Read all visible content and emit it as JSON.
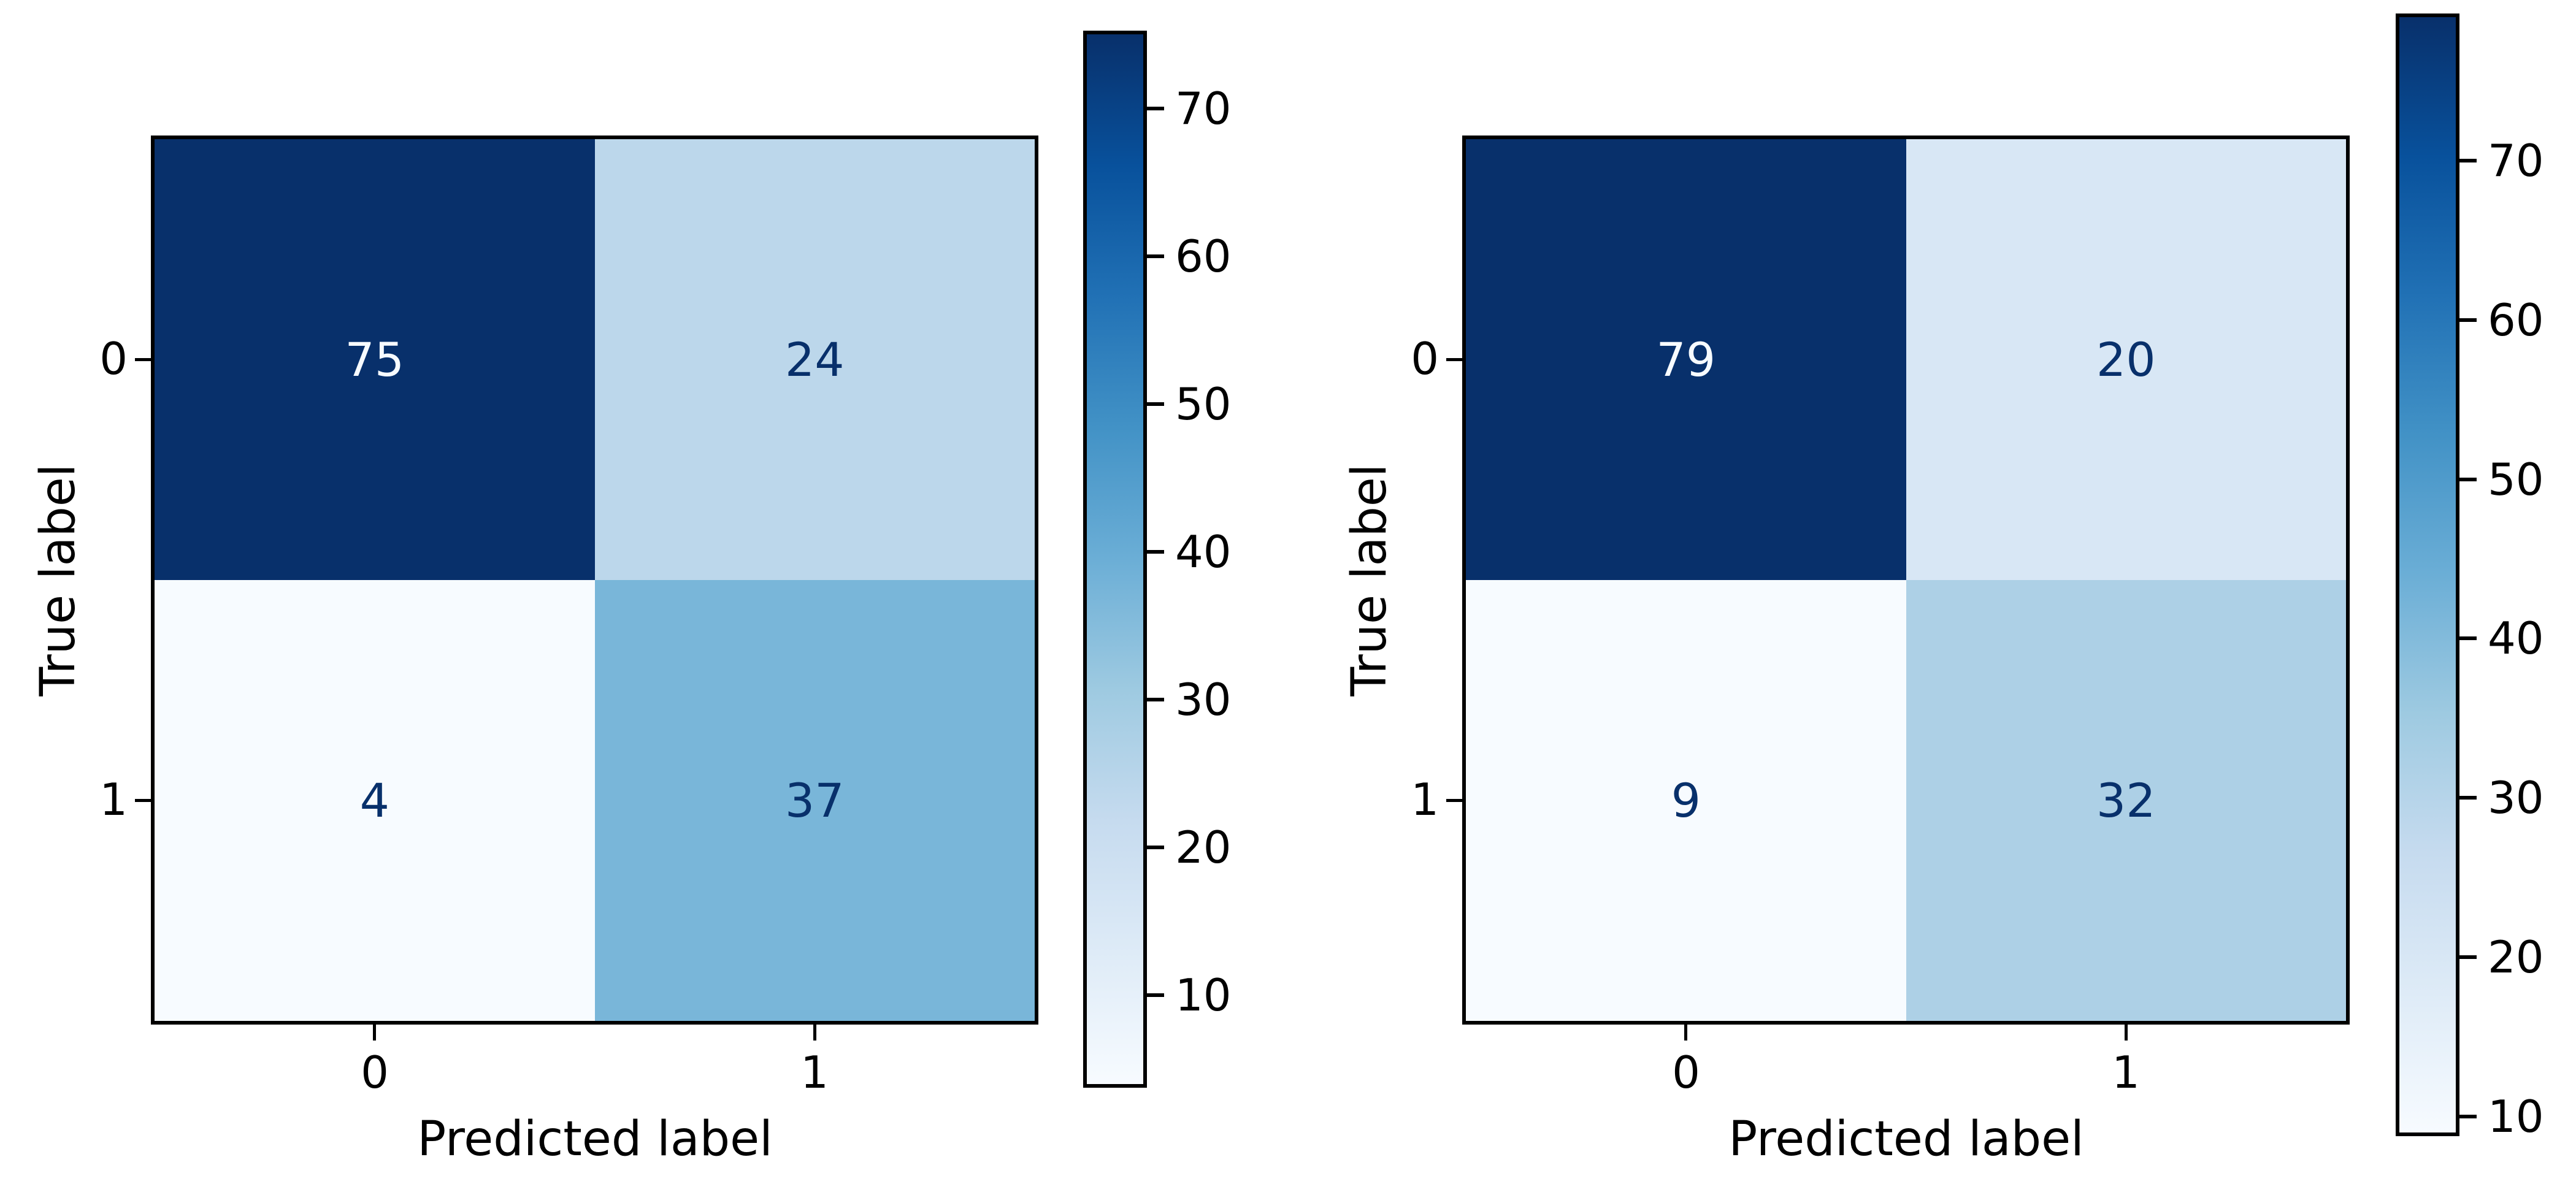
{
  "figure": {
    "background": "#ffffff",
    "description_left_plot": "confusion matrix 1",
    "description_right_plot": "confusion matrix 2"
  },
  "chart_data": [
    {
      "type": "heatmap",
      "title": "",
      "xlabel": "Predicted label",
      "ylabel": "True label",
      "x_categories": [
        "0",
        "1"
      ],
      "y_categories": [
        "0",
        "1"
      ],
      "matrix": [
        [
          75,
          24
        ],
        [
          4,
          37
        ]
      ],
      "vmin": 4,
      "vmax": 75,
      "colorbar_ticks": [
        70,
        60,
        50,
        40,
        30,
        20,
        10
      ],
      "colormap": "Blues",
      "colormap_stops": [
        "#f7fbff",
        "#deebf7",
        "#c6dbef",
        "#9ecae1",
        "#6baed6",
        "#4292c6",
        "#2171b5",
        "#08519c",
        "#08306b"
      ],
      "cell_colors": [
        [
          "#08306b",
          "#bcd7eb"
        ],
        [
          "#f7fbff",
          "#79b6d9"
        ]
      ],
      "cell_text_colors": [
        [
          "#f7fbff",
          "#08306b"
        ],
        [
          "#08306b",
          "#08306b"
        ]
      ],
      "grid": false,
      "legend": null
    },
    {
      "type": "heatmap",
      "title": "",
      "xlabel": "Predicted label",
      "ylabel": "True label",
      "x_categories": [
        "0",
        "1"
      ],
      "y_categories": [
        "0",
        "1"
      ],
      "matrix": [
        [
          79,
          20
        ],
        [
          9,
          32
        ]
      ],
      "vmin": 9,
      "vmax": 79,
      "colorbar_ticks": [
        70,
        60,
        50,
        40,
        30,
        20,
        10
      ],
      "colormap": "Blues",
      "colormap_stops": [
        "#f7fbff",
        "#deebf7",
        "#c6dbef",
        "#9ecae1",
        "#6baed6",
        "#4292c6",
        "#2171b5",
        "#08519c",
        "#08306b"
      ],
      "cell_colors": [
        [
          "#08306b",
          "#d8e7f5"
        ],
        [
          "#f7fbff",
          "#add0e6"
        ]
      ],
      "cell_text_colors": [
        [
          "#f7fbff",
          "#08306b"
        ],
        [
          "#08306b",
          "#08306b"
        ]
      ],
      "grid": false,
      "legend": null
    }
  ]
}
